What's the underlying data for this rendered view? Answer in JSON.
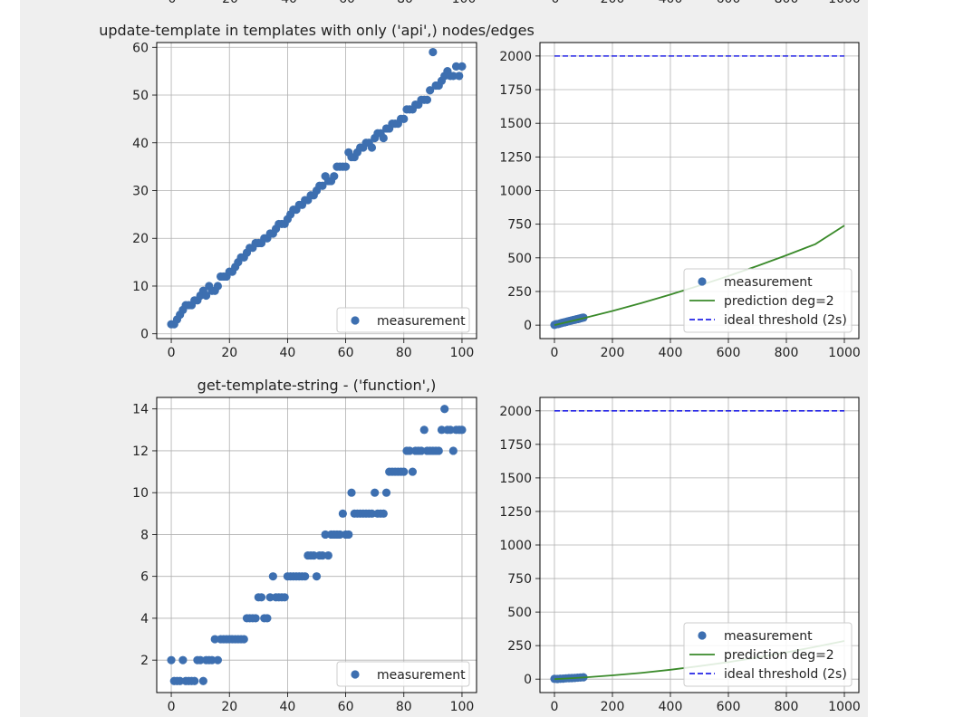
{
  "figure": {
    "background_color": "#efefef",
    "point_color": "#3d6fb0",
    "prediction_color": "#3a8a2a",
    "threshold_color": "#2323e6"
  },
  "top_strip": {
    "tick_labels": [
      "0",
      "200",
      "400",
      "600",
      "800",
      "1000",
      "0",
      "20",
      "40",
      "60",
      "80",
      "100"
    ]
  },
  "chart_data": [
    {
      "type": "scatter",
      "title": "update-template in templates with only ('api',) nodes/edges",
      "xlim": [
        -5,
        105
      ],
      "ylim": [
        -1,
        61
      ],
      "xticks": [
        0,
        20,
        40,
        60,
        80,
        100
      ],
      "yticks": [
        0,
        10,
        20,
        30,
        40,
        50,
        60
      ],
      "grid": true,
      "legend_position": "lower-right",
      "series": [
        {
          "name": "measurement",
          "x": [
            0,
            1,
            2,
            3,
            4,
            5,
            6,
            7,
            8,
            9,
            10,
            11,
            12,
            13,
            14,
            15,
            16,
            17,
            18,
            19,
            20,
            21,
            22,
            23,
            24,
            25,
            26,
            27,
            28,
            29,
            30,
            31,
            32,
            33,
            34,
            35,
            36,
            37,
            38,
            39,
            40,
            41,
            42,
            43,
            44,
            45,
            46,
            47,
            48,
            49,
            50,
            51,
            52,
            53,
            54,
            55,
            56,
            57,
            58,
            59,
            60,
            61,
            62,
            63,
            64,
            65,
            66,
            67,
            68,
            69,
            70,
            71,
            72,
            73,
            74,
            75,
            76,
            77,
            78,
            79,
            80,
            81,
            82,
            83,
            84,
            85,
            86,
            87,
            88,
            89,
            90,
            91,
            92,
            93,
            94,
            95,
            96,
            97,
            98,
            99,
            100
          ],
          "y": [
            2,
            2,
            3,
            4,
            5,
            6,
            6,
            6,
            7,
            7,
            8,
            9,
            8,
            10,
            9,
            9,
            10,
            12,
            12,
            12,
            13,
            13,
            14,
            15,
            16,
            16,
            17,
            18,
            18,
            19,
            19,
            19,
            20,
            20,
            21,
            21,
            22,
            23,
            23,
            23,
            24,
            25,
            26,
            26,
            27,
            27,
            28,
            28,
            29,
            29,
            30,
            31,
            31,
            33,
            32,
            32,
            33,
            35,
            35,
            35,
            35,
            38,
            37,
            37,
            38,
            39,
            39,
            40,
            40,
            39,
            41,
            42,
            42,
            41,
            43,
            43,
            44,
            44,
            44,
            45,
            45,
            47,
            47,
            47,
            48,
            48,
            49,
            49,
            49,
            51,
            59,
            52,
            52,
            53,
            54,
            55,
            54,
            54,
            56,
            54,
            56
          ]
        }
      ]
    },
    {
      "type": "line",
      "title": "",
      "xlim": [
        -50,
        1050
      ],
      "ylim": [
        -100,
        2100
      ],
      "xticks": [
        0,
        200,
        400,
        600,
        800,
        1000
      ],
      "yticks": [
        0,
        250,
        500,
        750,
        1000,
        1250,
        1500,
        1750,
        2000
      ],
      "grid": true,
      "legend_position": "lower-right",
      "series": [
        {
          "name": "measurement",
          "kind": "scatter",
          "x": [
            0,
            5,
            10,
            15,
            20,
            25,
            30,
            35,
            40,
            45,
            50,
            55,
            60,
            65,
            70,
            75,
            80,
            85,
            90,
            95,
            100
          ],
          "y": [
            2,
            6,
            8,
            9,
            13,
            16,
            19,
            21,
            24,
            27,
            30,
            32,
            35,
            38,
            40,
            43,
            45,
            48,
            51,
            54,
            56
          ]
        },
        {
          "name": "prediction deg=2",
          "kind": "line",
          "x": [
            0,
            100,
            200,
            300,
            400,
            500,
            600,
            700,
            800,
            900,
            1000
          ],
          "y": [
            0,
            51,
            105,
            164,
            227,
            294,
            365,
            440,
            519,
            602,
            740
          ]
        },
        {
          "name": "ideal threshold (2s)",
          "kind": "dashed",
          "x": [
            0,
            1000
          ],
          "y": [
            2000,
            2000
          ]
        }
      ]
    },
    {
      "type": "scatter",
      "title": "get-template-string - ('function',)",
      "xlim": [
        -5,
        105
      ],
      "ylim": [
        0.45,
        14.55
      ],
      "xticks": [
        0,
        20,
        40,
        60,
        80,
        100
      ],
      "yticks": [
        2,
        4,
        6,
        8,
        10,
        12,
        14
      ],
      "grid": true,
      "legend_position": "lower-right",
      "series": [
        {
          "name": "measurement",
          "x": [
            0,
            1,
            2,
            3,
            4,
            5,
            6,
            7,
            8,
            9,
            10,
            11,
            12,
            13,
            14,
            15,
            16,
            17,
            18,
            19,
            20,
            21,
            22,
            23,
            24,
            25,
            26,
            27,
            28,
            29,
            30,
            31,
            32,
            33,
            34,
            35,
            36,
            37,
            38,
            39,
            40,
            41,
            42,
            43,
            44,
            45,
            46,
            47,
            48,
            49,
            50,
            51,
            52,
            53,
            54,
            55,
            56,
            57,
            58,
            59,
            60,
            61,
            62,
            63,
            64,
            65,
            66,
            67,
            68,
            69,
            70,
            71,
            72,
            73,
            74,
            75,
            76,
            77,
            78,
            79,
            80,
            81,
            82,
            83,
            84,
            85,
            86,
            87,
            88,
            89,
            90,
            91,
            92,
            93,
            94,
            95,
            96,
            97,
            98,
            99,
            100
          ],
          "y": [
            2,
            1,
            1,
            1,
            2,
            1,
            1,
            1,
            1,
            2,
            2,
            1,
            2,
            2,
            2,
            3,
            2,
            3,
            3,
            3,
            3,
            3,
            3,
            3,
            3,
            3,
            4,
            4,
            4,
            4,
            5,
            5,
            4,
            4,
            5,
            6,
            5,
            5,
            5,
            5,
            6,
            6,
            6,
            6,
            6,
            6,
            6,
            7,
            7,
            7,
            6,
            7,
            7,
            8,
            7,
            8,
            8,
            8,
            8,
            9,
            8,
            8,
            10,
            9,
            9,
            9,
            9,
            9,
            9,
            9,
            10,
            9,
            9,
            9,
            10,
            11,
            11,
            11,
            11,
            11,
            11,
            12,
            12,
            11,
            12,
            12,
            12,
            13,
            12,
            12,
            12,
            12,
            12,
            13,
            14,
            13,
            13,
            12,
            13,
            13,
            13
          ]
        }
      ]
    },
    {
      "type": "line",
      "title": "",
      "xlim": [
        -50,
        1050
      ],
      "ylim": [
        -100,
        2100
      ],
      "xticks": [
        0,
        200,
        400,
        600,
        800,
        1000
      ],
      "yticks": [
        0,
        250,
        500,
        750,
        1000,
        1250,
        1500,
        1750,
        2000
      ],
      "grid": true,
      "legend_position": "lower-right",
      "series": [
        {
          "name": "measurement",
          "kind": "scatter",
          "x": [
            0,
            10,
            20,
            30,
            40,
            50,
            60,
            70,
            80,
            90,
            100
          ],
          "y": [
            2,
            1,
            3,
            4,
            6,
            7,
            8,
            9,
            11,
            12,
            14
          ]
        },
        {
          "name": "prediction deg=2",
          "kind": "line",
          "x": [
            0,
            100,
            200,
            300,
            400,
            500,
            600,
            700,
            800,
            900,
            1000
          ],
          "y": [
            0,
            12,
            28,
            47,
            70,
            97,
            127,
            161,
            199,
            241,
            285
          ]
        },
        {
          "name": "ideal threshold (2s)",
          "kind": "dashed",
          "x": [
            0,
            1000
          ],
          "y": [
            2000,
            2000
          ]
        }
      ]
    }
  ]
}
